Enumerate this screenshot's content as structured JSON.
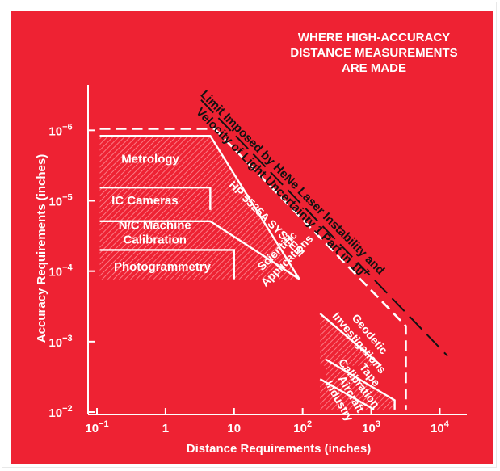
{
  "chart_data": {
    "type": "area",
    "title": [
      "WHERE HIGH-ACCURACY",
      "DISTANCE MEASUREMENTS",
      "ARE MADE"
    ],
    "xlabel": "Distance Requirements (inches)",
    "ylabel": "Accuracy Requirements (inches)",
    "x_scale": "log",
    "y_scale": "log",
    "y_inverted": true,
    "xlim": [
      0.1,
      20000
    ],
    "ylim": [
      6e-07,
      0.01
    ],
    "x_ticks": [
      {
        "value": 0.1,
        "base": "10",
        "exp": "−1"
      },
      {
        "value": 1,
        "base": "1",
        "exp": ""
      },
      {
        "value": 10,
        "base": "10",
        "exp": ""
      },
      {
        "value": 100,
        "base": "10",
        "exp": "2"
      },
      {
        "value": 1000,
        "base": "10",
        "exp": "3"
      },
      {
        "value": 10000,
        "base": "10",
        "exp": "4"
      }
    ],
    "y_ticks": [
      {
        "value": 1e-06,
        "base": "10",
        "exp": "−6"
      },
      {
        "value": 1e-05,
        "base": "10",
        "exp": "−5"
      },
      {
        "value": 0.0001,
        "base": "10",
        "exp": "−4"
      },
      {
        "value": 0.001,
        "base": "10",
        "exp": "−3"
      },
      {
        "value": 0.01,
        "base": "10",
        "exp": "−2"
      }
    ],
    "regions": [
      {
        "name": "Metrology",
        "text_lines": [
          "Metrology"
        ],
        "points": [
          [
            0.11,
            1.2e-06
          ],
          [
            4.5,
            1.2e-06
          ],
          [
            90,
            0.00013
          ],
          [
            0.11,
            0.00013
          ]
        ],
        "label_at": [
          0.6,
          2.5e-06
        ]
      },
      {
        "name": "IC Cameras",
        "text_lines": [
          "IC Cameras"
        ],
        "points": [
          [
            0.11,
            6.5e-06
          ],
          [
            4.5,
            6.5e-06
          ],
          [
            4.5,
            1.35e-05
          ],
          [
            0.11,
            1.35e-05
          ]
        ],
        "label_at": [
          0.5,
          9.8e-06
        ]
      },
      {
        "name": "N/C Machine Calibration",
        "text_lines": [
          "N/C Machine",
          "Calibration"
        ],
        "points": [
          [
            0.11,
            1.95e-05
          ],
          [
            4.5,
            1.95e-05
          ],
          [
            90,
            0.00013
          ],
          [
            0.11,
            0.00013
          ]
        ],
        "label_at": [
          0.7,
          2.8e-05
        ]
      },
      {
        "name": "Photogrammetry",
        "text_lines": [
          "Photogrammetry"
        ],
        "points": [
          [
            0.11,
            5e-05
          ],
          [
            10,
            5e-05
          ],
          [
            10,
            0.00013
          ],
          [
            0.11,
            0.00013
          ]
        ],
        "label_at": [
          0.9,
          8.5e-05
        ]
      },
      {
        "name": "Scientific Applications",
        "text_lines": [
          "Scientific",
          "Applications"
        ],
        "points": [],
        "label_at": [
          50,
          6e-05
        ]
      },
      {
        "name": "Geodetic Investigations",
        "text_lines": [
          "Geodetic",
          "Investigations"
        ],
        "points": [
          [
            180,
            0.0004
          ],
          [
            1400,
            0.0022
          ],
          [
            180,
            0.0022
          ]
        ],
        "label_at": [
          800,
          0.0009
        ]
      },
      {
        "name": "Tape Calibration",
        "text_lines": [
          "Tape",
          "Calibration"
        ],
        "points": [
          [
            220,
            0.0018
          ],
          [
            2200,
            0.0068
          ],
          [
            2200,
            0.0092
          ],
          [
            220,
            0.0092
          ]
        ],
        "label_at": [
          800,
          0.0034
        ]
      },
      {
        "name": "Aircraft Industry",
        "text_lines": [
          "Aircraft",
          "Industry"
        ],
        "points": [
          [
            180,
            0.0034
          ],
          [
            1100,
            0.0092
          ],
          [
            180,
            0.0092
          ]
        ],
        "label_at": [
          420,
          0.0062
        ]
      }
    ],
    "boundaries": [
      {
        "name": "HP 5525A SYSTEM",
        "text_lines": [
          "HP 5525A SYSTEM"
        ],
        "style": "dashed-white",
        "points": [
          [
            0.11,
            9.5e-07
          ],
          [
            5.2,
            9.5e-07
          ],
          [
            3200,
            0.0006
          ],
          [
            3200,
            0.0092
          ]
        ],
        "label_at": [
          30,
          1.8e-05
        ]
      },
      {
        "name": "Limit Imposed by HeNe Laser Instability and Velocity of Light Uncertainty 1 Part in 10^7",
        "text_lines": [
          "Limit Imposed by HeNe Laser Instability and",
          "Velocity of Light Uncertainty 1 Part in 10"
        ],
        "sup": "7",
        "style": "dashed-black",
        "points": [
          [
            3.3,
            3.7e-07
          ],
          [
            13000,
            0.0016
          ]
        ],
        "label_at": [
          60,
          6.5e-06
        ]
      }
    ],
    "grid": false,
    "legend": "none"
  }
}
